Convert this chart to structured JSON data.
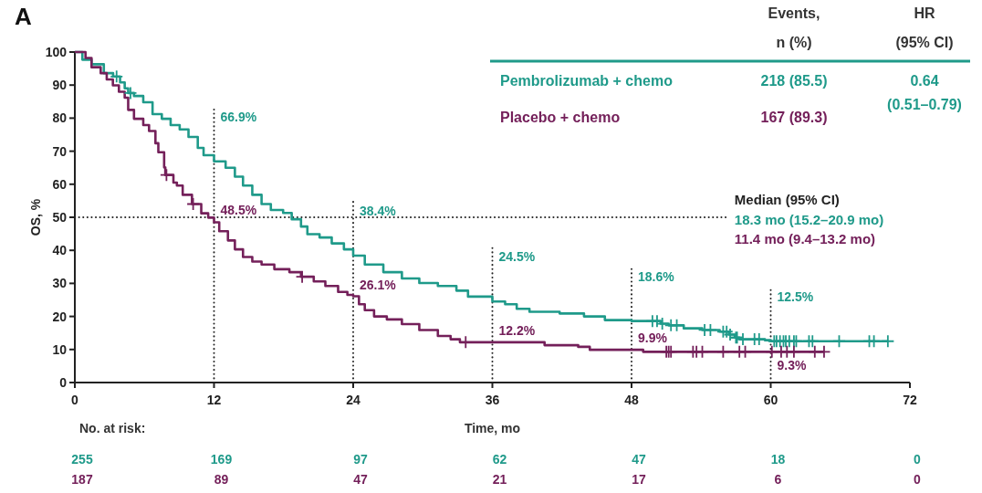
{
  "chart_data": {
    "type": "step",
    "title": "A",
    "xlabel": "Time, mo",
    "ylabel": "OS, %",
    "xlim": [
      0,
      72
    ],
    "xticks": [
      0,
      12,
      24,
      36,
      48,
      60,
      72
    ],
    "ylim": [
      0,
      100
    ],
    "yticks": [
      0,
      10,
      20,
      30,
      40,
      50,
      60,
      70,
      80,
      90,
      100
    ],
    "legend": "top right",
    "series": [
      {
        "name": "Pembrolizumab + chemo",
        "color": "#1f9a8a",
        "x": [
          0,
          0.65,
          1.44,
          2.5,
          3.3,
          3.9,
          4.3,
          4.6,
          5.1,
          5.9,
          6.7,
          7.5,
          8.26,
          9.04,
          9.8,
          10.6,
          11.1,
          12,
          13,
          13.8,
          14.5,
          15.3,
          16.1,
          16.9,
          17.96,
          18.7,
          19.5,
          20.05,
          21.1,
          22.15,
          23.2,
          24,
          25,
          26.6,
          28.2,
          29.7,
          31.3,
          32.9,
          33.9,
          36,
          37.1,
          38.1,
          39.2,
          41.8,
          43.9,
          45.7,
          48,
          50.5,
          51.2,
          52.5,
          54.1,
          55.6,
          56.4,
          56.9,
          57.3,
          59.5,
          60,
          70.1
        ],
        "values": [
          100,
          97.7,
          96.3,
          93.6,
          92.6,
          90.8,
          89.0,
          87.6,
          86.7,
          84.8,
          81.2,
          79.8,
          77.9,
          76.6,
          74.3,
          71.0,
          68.8,
          66.9,
          65.0,
          62.3,
          59.6,
          56.8,
          54.0,
          52.2,
          51.3,
          49.4,
          47.2,
          44.9,
          43.9,
          42.1,
          40.3,
          38.4,
          35.7,
          33.4,
          31.5,
          30.1,
          29.2,
          27.8,
          26.0,
          24.5,
          23.7,
          22.3,
          21.4,
          20.9,
          20.0,
          18.9,
          18.6,
          17.8,
          17.3,
          16.4,
          15.9,
          15.4,
          14.5,
          13.6,
          13.1,
          12.8,
          12.5,
          12.5
        ],
        "value_labels": [
          null,
          null,
          null,
          null,
          null,
          null,
          null,
          null,
          null,
          null,
          null,
          null,
          null,
          null,
          null,
          null,
          null,
          "66.9%",
          null,
          null,
          null,
          null,
          null,
          null,
          null,
          null,
          null,
          null,
          null,
          null,
          null,
          "38.4%",
          null,
          null,
          null,
          null,
          null,
          null,
          null,
          "24.5%",
          null,
          null,
          null,
          null,
          null,
          null,
          "18.6%",
          null,
          null,
          null,
          null,
          null,
          null,
          null,
          null,
          null,
          "12.5%",
          null
        ]
      },
      {
        "name": "Placebo + chemo",
        "color": "#74205a",
        "x": [
          0,
          0.92,
          1.44,
          2.23,
          2.75,
          3.28,
          3.8,
          4.3,
          4.6,
          5.1,
          5.9,
          6.4,
          6.95,
          7.2,
          7.7,
          7.8,
          8.5,
          8.8,
          9.3,
          10.1,
          10.9,
          11.5,
          12,
          12.45,
          13.2,
          13.8,
          14.5,
          15.3,
          16.1,
          17.2,
          18.5,
          19.5,
          20.6,
          21.6,
          22.7,
          23.5,
          24,
          24.5,
          25,
          25.8,
          26.9,
          28.2,
          29.7,
          31.3,
          32.4,
          33.2,
          36,
          40.5,
          43.4,
          44.4,
          48,
          49,
          60,
          64.6
        ],
        "values": [
          100,
          98.2,
          95.4,
          93.6,
          91.7,
          89.9,
          88.0,
          86.2,
          82.5,
          79.8,
          77.9,
          76.1,
          72.4,
          69.7,
          65.1,
          62.8,
          60.5,
          59.6,
          56.8,
          54.0,
          51.2,
          49.9,
          48.5,
          45.8,
          43.0,
          40.3,
          38.0,
          36.6,
          35.7,
          34.3,
          33.4,
          32.0,
          30.6,
          29.2,
          27.4,
          26.5,
          26.1,
          23.7,
          21.9,
          20.0,
          19.1,
          17.7,
          15.9,
          14.1,
          13.1,
          12.2,
          12.2,
          11.3,
          10.8,
          9.9,
          9.9,
          9.3,
          9.3,
          9.3
        ],
        "value_labels": [
          null,
          null,
          null,
          null,
          null,
          null,
          null,
          null,
          null,
          null,
          null,
          null,
          null,
          null,
          null,
          null,
          null,
          null,
          null,
          null,
          null,
          null,
          "48.5%",
          null,
          null,
          null,
          null,
          null,
          null,
          null,
          null,
          null,
          null,
          null,
          null,
          null,
          "26.1%",
          null,
          null,
          null,
          null,
          null,
          null,
          null,
          null,
          null,
          "12.2%",
          null,
          null,
          null,
          "9.9%",
          null,
          "9.3%",
          null
        ]
      },
      {
        "type": "scatter",
        "marker": "cross",
        "color": "#1f9a8a",
        "x": [
          3.6,
          4.8,
          49.8,
          50.2,
          50.65,
          51.4,
          51.9,
          54.3,
          54.8,
          55.9,
          56.2,
          56.5,
          57.0,
          57.1,
          57.6,
          58.6,
          59.0,
          60.3,
          60.5,
          60.8,
          61.1,
          61.3,
          61.6,
          62.0,
          62.2,
          63.3,
          63.6,
          65.9,
          68.5,
          68.9,
          70.1
        ],
        "values": [
          92.6,
          87.6,
          18.6,
          18.6,
          17.8,
          17.3,
          17.3,
          15.9,
          15.9,
          15.4,
          15.4,
          14.5,
          13.6,
          13.6,
          13.1,
          13.1,
          13.1,
          12.5,
          12.5,
          12.5,
          12.5,
          12.5,
          12.5,
          12.5,
          12.5,
          12.5,
          12.5,
          12.5,
          12.5,
          12.5,
          12.5
        ]
      },
      {
        "type": "scatter",
        "marker": "cross",
        "color": "#74205a",
        "x": [
          7.9,
          10.2,
          19.6,
          33.7,
          51.0,
          51.2,
          51.4,
          53.3,
          53.6,
          54.1,
          55.9,
          57.3,
          57.8,
          60.1,
          60.9,
          61.4,
          62.0,
          63.8,
          64.6
        ],
        "values": [
          62.8,
          54.0,
          32.0,
          12.2,
          9.3,
          9.3,
          9.3,
          9.3,
          9.3,
          9.3,
          9.3,
          9.3,
          9.3,
          9.3,
          9.3,
          9.3,
          9.3,
          9.3,
          9.3
        ]
      }
    ],
    "ref_lines": [
      {
        "axis": "y",
        "value": 50,
        "label": "Median (95% CI)",
        "line_style": "dotted"
      },
      {
        "axis": "x",
        "value": 12,
        "line_style": "dotted"
      },
      {
        "axis": "x",
        "value": 24,
        "line_style": "dotted"
      },
      {
        "axis": "x",
        "value": 36,
        "line_style": "dotted"
      },
      {
        "axis": "x",
        "value": 48,
        "line_style": "dotted"
      },
      {
        "axis": "x",
        "value": 60,
        "line_style": "dotted"
      }
    ],
    "annotations": [
      "Events,\nn (%)",
      "HR\n(95% CI)",
      "218 (85.5)",
      "167 (89.3)",
      "0.64\n(0.51–0.79)",
      "18.3 mo (15.2–20.9 mo)",
      "11.4 mo (9.4–13.2 mo)",
      "No. at risk:",
      "255",
      "169",
      "97",
      "62",
      "47",
      "18",
      "0",
      "187",
      "89",
      "47",
      "21",
      "17",
      "6",
      "0"
    ]
  }
}
